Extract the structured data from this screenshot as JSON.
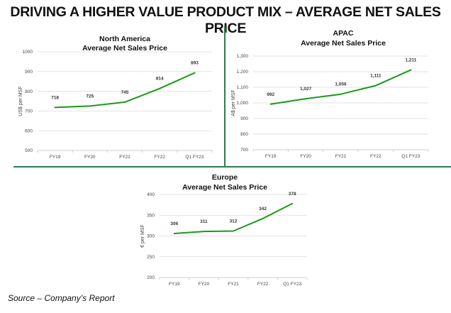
{
  "page": {
    "title": "DRIVING A HIGHER VALUE PRODUCT MIX – AVERAGE NET SALES PRICE",
    "source": "Source – Company’s Report",
    "line_color": "#1a9a1a",
    "divider_color": "#2e7d4f"
  },
  "chart_data": [
    {
      "type": "line",
      "title": "North America",
      "subtitle": "Average Net Sales Price",
      "xlabel": "",
      "ylabel": "US$ per MSF",
      "categories": [
        "FY19",
        "FY20",
        "FY21",
        "FY22",
        "Q1 FY23"
      ],
      "values": [
        718,
        725,
        745,
        814,
        893
      ],
      "data_labels": [
        "718",
        "725",
        "745",
        "814",
        "893"
      ],
      "ylim": [
        500,
        1000
      ],
      "yticks": [
        500,
        600,
        700,
        800,
        900,
        1000
      ],
      "ytick_labels": [
        "500",
        "600",
        "700",
        "800",
        "900",
        "1000"
      ],
      "grid": true,
      "legend": "none"
    },
    {
      "type": "line",
      "title": "APAC",
      "subtitle": "Average Net Sales Price",
      "xlabel": "",
      "ylabel": "A$ per MSF",
      "categories": [
        "FY19",
        "FY20",
        "FY21",
        "FY22",
        "Q1 FY23"
      ],
      "values": [
        992,
        1027,
        1056,
        1111,
        1211
      ],
      "data_labels": [
        "992",
        "1,027",
        "1,056",
        "1,111",
        "1,211"
      ],
      "ylim": [
        700,
        1300
      ],
      "yticks": [
        700,
        800,
        900,
        1000,
        1100,
        1200,
        1300
      ],
      "ytick_labels": [
        "700",
        "800",
        "900",
        "1,000",
        "1,100",
        "1,200",
        "1,300"
      ],
      "grid": true,
      "legend": "none"
    },
    {
      "type": "line",
      "title": "Europe",
      "subtitle": "Average Net Sales Price",
      "xlabel": "",
      "ylabel": "€ per MSF",
      "categories": [
        "FY19",
        "FY20",
        "FY21",
        "FY22",
        "Q1 FY23"
      ],
      "values": [
        306,
        311,
        312,
        342,
        378
      ],
      "data_labels": [
        "306",
        "311",
        "312",
        "342",
        "378"
      ],
      "ylim": [
        200,
        400
      ],
      "yticks": [
        200,
        250,
        300,
        350,
        400
      ],
      "ytick_labels": [
        "200",
        "250",
        "300",
        "350",
        "400"
      ],
      "grid": true,
      "legend": "none"
    }
  ]
}
